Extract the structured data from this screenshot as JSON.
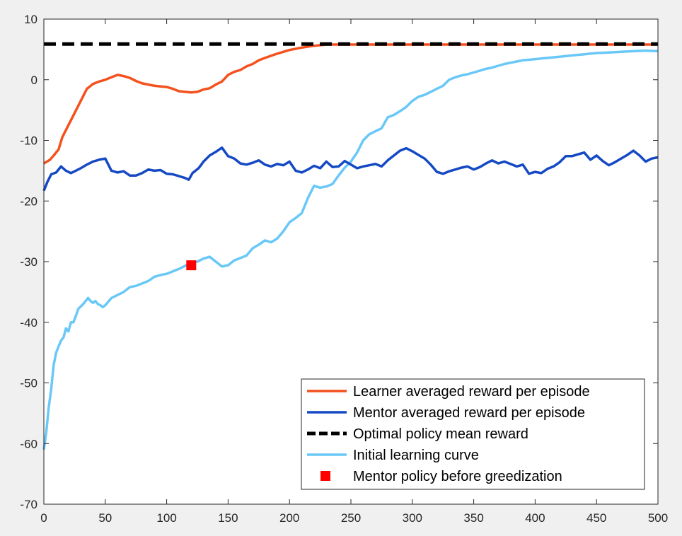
{
  "chart_data": {
    "type": "line",
    "title": "",
    "xlabel": "",
    "ylabel": "",
    "xlim": [
      0,
      500
    ],
    "ylim": [
      -70,
      10
    ],
    "x_ticks": [
      0,
      50,
      100,
      150,
      200,
      250,
      300,
      350,
      400,
      450,
      500
    ],
    "y_ticks": [
      10,
      0,
      -10,
      -20,
      -30,
      -40,
      -50,
      -60,
      -70
    ],
    "grid": false,
    "legend_position": "bottom-right",
    "series": [
      {
        "name": "Learner averaged reward per episode",
        "color": "#f4511e",
        "style": "solid",
        "points": [
          [
            0,
            -13.8
          ],
          [
            5,
            -13.2
          ],
          [
            8,
            -12.5
          ],
          [
            12,
            -11.5
          ],
          [
            15,
            -9.5
          ],
          [
            20,
            -7.5
          ],
          [
            25,
            -5.5
          ],
          [
            30,
            -3.5
          ],
          [
            35,
            -1.5
          ],
          [
            40,
            -0.7
          ],
          [
            45,
            -0.3
          ],
          [
            50,
            0.0
          ],
          [
            55,
            0.4
          ],
          [
            60,
            0.8
          ],
          [
            65,
            0.6
          ],
          [
            70,
            0.3
          ],
          [
            75,
            -0.2
          ],
          [
            80,
            -0.6
          ],
          [
            85,
            -0.8
          ],
          [
            90,
            -1.0
          ],
          [
            95,
            -1.1
          ],
          [
            100,
            -1.2
          ],
          [
            105,
            -1.5
          ],
          [
            110,
            -1.9
          ],
          [
            115,
            -2.0
          ],
          [
            120,
            -2.1
          ],
          [
            125,
            -2.0
          ],
          [
            130,
            -1.6
          ],
          [
            135,
            -1.4
          ],
          [
            140,
            -0.8
          ],
          [
            145,
            -0.3
          ],
          [
            150,
            0.8
          ],
          [
            155,
            1.3
          ],
          [
            160,
            1.6
          ],
          [
            165,
            2.2
          ],
          [
            170,
            2.6
          ],
          [
            175,
            3.2
          ],
          [
            180,
            3.6
          ],
          [
            190,
            4.3
          ],
          [
            200,
            4.9
          ],
          [
            210,
            5.3
          ],
          [
            220,
            5.6
          ],
          [
            230,
            5.8
          ],
          [
            250,
            5.8
          ],
          [
            300,
            5.8
          ],
          [
            400,
            5.8
          ],
          [
            500,
            5.8
          ]
        ]
      },
      {
        "name": "Mentor averaged reward per episode",
        "color": "#1549c4",
        "style": "solid",
        "points": [
          [
            0,
            -18.3
          ],
          [
            3,
            -16.8
          ],
          [
            6,
            -15.6
          ],
          [
            10,
            -15.3
          ],
          [
            14,
            -14.3
          ],
          [
            18,
            -15.0
          ],
          [
            22,
            -15.4
          ],
          [
            26,
            -15.0
          ],
          [
            30,
            -14.6
          ],
          [
            35,
            -14.0
          ],
          [
            40,
            -13.5
          ],
          [
            45,
            -13.2
          ],
          [
            50,
            -13.0
          ],
          [
            55,
            -15.0
          ],
          [
            60,
            -15.3
          ],
          [
            65,
            -15.1
          ],
          [
            70,
            -15.8
          ],
          [
            75,
            -15.8
          ],
          [
            80,
            -15.4
          ],
          [
            85,
            -14.8
          ],
          [
            90,
            -15.0
          ],
          [
            95,
            -14.9
          ],
          [
            100,
            -15.5
          ],
          [
            105,
            -15.6
          ],
          [
            110,
            -15.9
          ],
          [
            115,
            -16.2
          ],
          [
            118,
            -16.5
          ],
          [
            121,
            -15.4
          ],
          [
            126,
            -14.6
          ],
          [
            130,
            -13.5
          ],
          [
            135,
            -12.5
          ],
          [
            140,
            -11.9
          ],
          [
            145,
            -11.2
          ],
          [
            150,
            -12.6
          ],
          [
            155,
            -13.0
          ],
          [
            160,
            -13.8
          ],
          [
            165,
            -14.0
          ],
          [
            170,
            -13.7
          ],
          [
            175,
            -13.3
          ],
          [
            180,
            -14.0
          ],
          [
            185,
            -14.3
          ],
          [
            190,
            -13.9
          ],
          [
            195,
            -14.1
          ],
          [
            200,
            -13.5
          ],
          [
            205,
            -15.0
          ],
          [
            210,
            -15.3
          ],
          [
            215,
            -14.8
          ],
          [
            220,
            -14.2
          ],
          [
            225,
            -14.6
          ],
          [
            230,
            -13.5
          ],
          [
            235,
            -14.4
          ],
          [
            240,
            -14.3
          ],
          [
            245,
            -13.4
          ],
          [
            250,
            -14.0
          ],
          [
            255,
            -14.6
          ],
          [
            260,
            -14.3
          ],
          [
            265,
            -14.1
          ],
          [
            270,
            -13.9
          ],
          [
            275,
            -14.3
          ],
          [
            280,
            -13.3
          ],
          [
            285,
            -12.5
          ],
          [
            290,
            -11.7
          ],
          [
            295,
            -11.3
          ],
          [
            300,
            -11.8
          ],
          [
            305,
            -12.4
          ],
          [
            310,
            -13.0
          ],
          [
            315,
            -14.0
          ],
          [
            320,
            -15.2
          ],
          [
            325,
            -15.5
          ],
          [
            330,
            -15.1
          ],
          [
            335,
            -14.8
          ],
          [
            340,
            -14.5
          ],
          [
            345,
            -14.3
          ],
          [
            350,
            -14.8
          ],
          [
            355,
            -14.4
          ],
          [
            360,
            -13.8
          ],
          [
            365,
            -13.3
          ],
          [
            370,
            -13.8
          ],
          [
            375,
            -13.5
          ],
          [
            380,
            -13.9
          ],
          [
            385,
            -14.3
          ],
          [
            390,
            -14.0
          ],
          [
            395,
            -15.5
          ],
          [
            400,
            -15.2
          ],
          [
            405,
            -15.4
          ],
          [
            410,
            -14.7
          ],
          [
            415,
            -14.3
          ],
          [
            420,
            -13.6
          ],
          [
            425,
            -12.6
          ],
          [
            430,
            -12.6
          ],
          [
            435,
            -12.3
          ],
          [
            440,
            -12.0
          ],
          [
            445,
            -13.2
          ],
          [
            450,
            -12.5
          ],
          [
            455,
            -13.4
          ],
          [
            460,
            -14.1
          ],
          [
            465,
            -13.6
          ],
          [
            470,
            -13.0
          ],
          [
            475,
            -12.4
          ],
          [
            480,
            -11.7
          ],
          [
            485,
            -12.5
          ],
          [
            490,
            -13.5
          ],
          [
            495,
            -13.0
          ],
          [
            500,
            -12.8
          ]
        ]
      },
      {
        "name": "Optimal policy mean reward",
        "color": "#000000",
        "style": "dashed",
        "points": [
          [
            0,
            5.9
          ],
          [
            500,
            5.9
          ]
        ]
      },
      {
        "name": "Initial learning curve",
        "color": "#69c8f8",
        "style": "solid",
        "points": [
          [
            0,
            -61
          ],
          [
            2,
            -58
          ],
          [
            4,
            -54
          ],
          [
            6,
            -51
          ],
          [
            8,
            -47
          ],
          [
            10,
            -45
          ],
          [
            12,
            -44
          ],
          [
            14,
            -43
          ],
          [
            16,
            -42.5
          ],
          [
            18,
            -41
          ],
          [
            20,
            -41.5
          ],
          [
            22,
            -40
          ],
          [
            24,
            -40
          ],
          [
            26,
            -39
          ],
          [
            28,
            -37.8
          ],
          [
            30,
            -37.4
          ],
          [
            32,
            -37
          ],
          [
            34,
            -36.5
          ],
          [
            36,
            -36
          ],
          [
            38,
            -36.5
          ],
          [
            40,
            -36.8
          ],
          [
            42,
            -36.5
          ],
          [
            44,
            -37
          ],
          [
            46,
            -37.2
          ],
          [
            48,
            -37.5
          ],
          [
            50,
            -37.2
          ],
          [
            55,
            -36
          ],
          [
            60,
            -35.5
          ],
          [
            65,
            -35
          ],
          [
            70,
            -34.2
          ],
          [
            75,
            -34
          ],
          [
            80,
            -33.6
          ],
          [
            85,
            -33.2
          ],
          [
            90,
            -32.5
          ],
          [
            95,
            -32.2
          ],
          [
            100,
            -32
          ],
          [
            105,
            -31.6
          ],
          [
            110,
            -31.2
          ],
          [
            115,
            -30.7
          ],
          [
            120,
            -30.2
          ],
          [
            125,
            -30
          ],
          [
            130,
            -29.5
          ],
          [
            135,
            -29.2
          ],
          [
            140,
            -30
          ],
          [
            145,
            -30.8
          ],
          [
            150,
            -30.6
          ],
          [
            155,
            -29.8
          ],
          [
            160,
            -29.4
          ],
          [
            165,
            -29
          ],
          [
            170,
            -27.8
          ],
          [
            175,
            -27.2
          ],
          [
            180,
            -26.5
          ],
          [
            185,
            -26.8
          ],
          [
            190,
            -26.2
          ],
          [
            195,
            -25
          ],
          [
            200,
            -23.5
          ],
          [
            205,
            -22.8
          ],
          [
            210,
            -22
          ],
          [
            215,
            -19.5
          ],
          [
            220,
            -17.5
          ],
          [
            225,
            -17.8
          ],
          [
            230,
            -17.6
          ],
          [
            235,
            -17.2
          ],
          [
            240,
            -15.8
          ],
          [
            245,
            -14.5
          ],
          [
            250,
            -13.5
          ],
          [
            255,
            -12
          ],
          [
            260,
            -10
          ],
          [
            265,
            -9
          ],
          [
            270,
            -8.5
          ],
          [
            275,
            -8
          ],
          [
            280,
            -6.2
          ],
          [
            285,
            -5.8
          ],
          [
            290,
            -5.2
          ],
          [
            295,
            -4.5
          ],
          [
            300,
            -3.5
          ],
          [
            305,
            -2.8
          ],
          [
            310,
            -2.5
          ],
          [
            315,
            -2
          ],
          [
            320,
            -1.5
          ],
          [
            325,
            -1
          ],
          [
            330,
            0
          ],
          [
            335,
            0.4
          ],
          [
            340,
            0.7
          ],
          [
            345,
            0.9
          ],
          [
            350,
            1.2
          ],
          [
            355,
            1.5
          ],
          [
            360,
            1.8
          ],
          [
            365,
            2
          ],
          [
            370,
            2.3
          ],
          [
            375,
            2.6
          ],
          [
            380,
            2.8
          ],
          [
            385,
            3
          ],
          [
            390,
            3.2
          ],
          [
            395,
            3.3
          ],
          [
            400,
            3.4
          ],
          [
            410,
            3.6
          ],
          [
            420,
            3.8
          ],
          [
            430,
            4.0
          ],
          [
            440,
            4.2
          ],
          [
            450,
            4.4
          ],
          [
            460,
            4.5
          ],
          [
            470,
            4.6
          ],
          [
            480,
            4.7
          ],
          [
            490,
            4.8
          ],
          [
            500,
            4.7
          ]
        ]
      },
      {
        "name": "Mentor policy before greedization",
        "color": "#ff0000",
        "style": "marker-square",
        "points": [
          [
            120,
            -30.6
          ]
        ]
      }
    ]
  }
}
